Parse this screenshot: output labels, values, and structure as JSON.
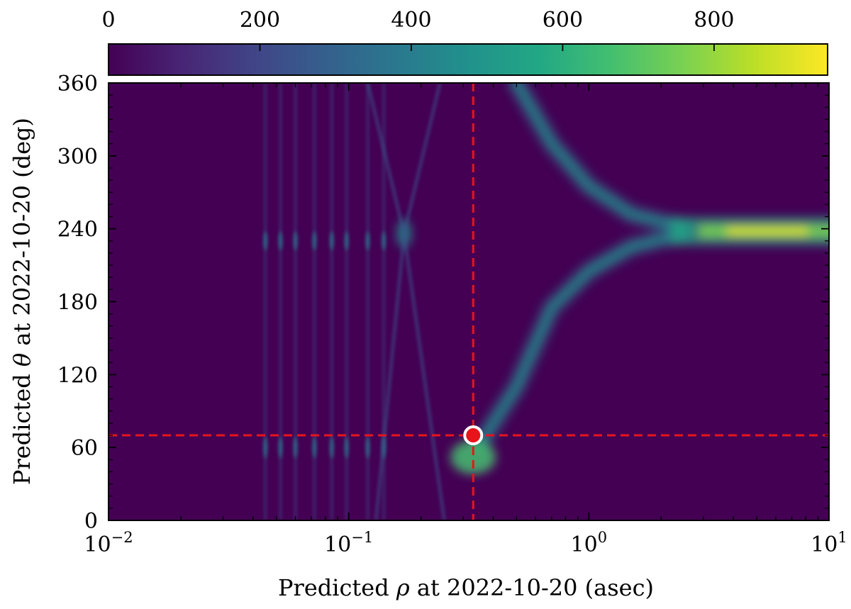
{
  "chart_data": {
    "type": "heatmap",
    "title": "",
    "colorbar": {
      "colormap": "viridis",
      "range": [
        0,
        950
      ],
      "ticks": [
        0,
        200,
        400,
        600,
        800
      ],
      "tick_labels": [
        "0",
        "200",
        "400",
        "600",
        "800"
      ],
      "placement": "top"
    },
    "x_axis": {
      "label_parts": [
        "Predicted ",
        "ρ",
        " at 2022-10-20 (asec)"
      ],
      "scale": "log",
      "range": [
        0.01,
        10
      ],
      "ticks": [
        0.01,
        0.1,
        1,
        10
      ],
      "tick_labels": [
        {
          "base": "10",
          "exp": "−2"
        },
        {
          "base": "10",
          "exp": "−1"
        },
        {
          "base": "10",
          "exp": "0"
        },
        {
          "base": "10",
          "exp": "1"
        }
      ]
    },
    "y_axis": {
      "label_parts": [
        "Predicted ",
        "θ",
        " at 2022-10-20 (deg)"
      ],
      "scale": "linear",
      "range": [
        0,
        360
      ],
      "ticks": [
        0,
        60,
        120,
        180,
        240,
        300,
        360
      ],
      "tick_labels": [
        "0",
        "60",
        "120",
        "180",
        "240",
        "300",
        "360"
      ]
    },
    "density_features": {
      "main_arm_upper": [
        [
          0.35,
          62
        ],
        [
          0.5,
          110
        ],
        [
          0.7,
          175
        ],
        [
          1.0,
          205
        ],
        [
          1.5,
          225
        ],
        [
          2.5,
          236
        ]
      ],
      "main_arm_lower": [
        [
          0.5,
          360
        ],
        [
          0.7,
          310
        ],
        [
          1.0,
          275
        ],
        [
          1.5,
          252
        ],
        [
          2.5,
          241
        ]
      ],
      "plateau": {
        "rho_range": [
          2.5,
          10
        ],
        "theta": 238,
        "peak_value": 950
      },
      "peak_near_marker": {
        "rho": 0.33,
        "theta": 52
      },
      "crossing_peak": {
        "rho": 0.17,
        "theta": 236
      },
      "faint_stripes_rho": [
        0.045,
        0.052,
        0.06,
        0.072,
        0.085,
        0.098,
        0.12,
        0.14
      ]
    },
    "marker": {
      "rho": 0.33,
      "theta": 70,
      "color": "#e8141b",
      "edge_color": "#ffffff"
    },
    "reference_lines": {
      "x": 0.33,
      "y": 70,
      "color": "#e8141b",
      "style": "dashed"
    },
    "grid": false,
    "legend": "none"
  }
}
